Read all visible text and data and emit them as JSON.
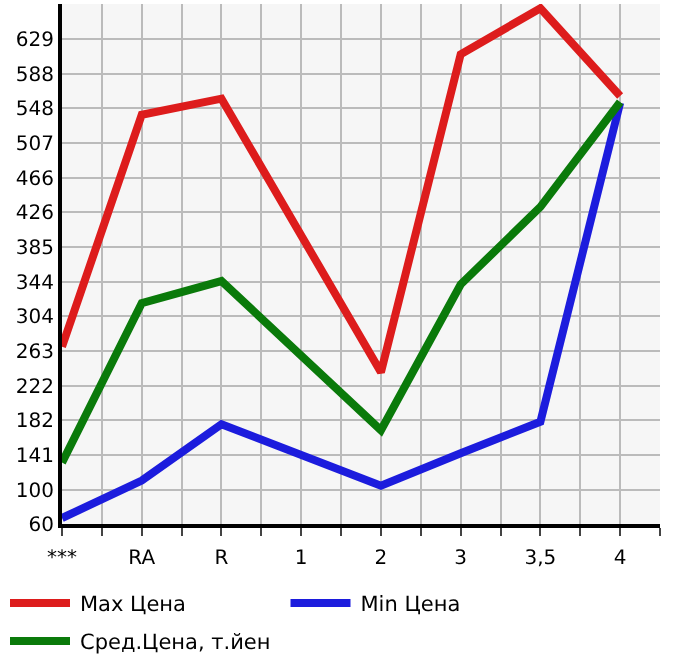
{
  "chart_data": {
    "type": "line",
    "categories": [
      "***",
      "RA",
      "R",
      "1",
      "2",
      "3",
      "3,5",
      "4"
    ],
    "series": [
      {
        "name": "Max Цена",
        "color": "#dd1c1c",
        "values": [
          268,
          540,
          559,
          null,
          238,
          611,
          665,
          562
        ]
      },
      {
        "name": "Min Цена",
        "color": "#1c1cdd",
        "values": [
          67,
          111,
          177,
          null,
          105,
          143,
          180,
          554
        ]
      },
      {
        "name": "Сред.Цена, т.йен",
        "color": "#0a7a0a",
        "values": [
          132,
          319,
          345,
          null,
          170,
          341,
          432,
          555
        ]
      }
    ],
    "ylim": [
      60,
      670
    ],
    "yticks": [
      60,
      100,
      141,
      182,
      222,
      263,
      304,
      344,
      385,
      426,
      466,
      507,
      548,
      588,
      629
    ],
    "grid": true,
    "legend": "bottom",
    "marker": "none",
    "line_style": "solid"
  }
}
